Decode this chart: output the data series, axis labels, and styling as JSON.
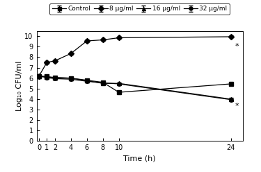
{
  "time": [
    0,
    1,
    2,
    4,
    6,
    8,
    10,
    24
  ],
  "control": [
    6.2,
    6.15,
    6.05,
    6.0,
    5.8,
    5.6,
    4.65,
    5.45
  ],
  "ug8": [
    6.2,
    7.5,
    7.65,
    8.35,
    9.55,
    9.65,
    9.85,
    9.95
  ],
  "ug16": [
    6.2,
    6.1,
    6.05,
    6.0,
    5.75,
    5.5,
    5.5,
    4.0
  ],
  "ug32": [
    6.2,
    6.05,
    5.95,
    5.9,
    5.7,
    5.55,
    5.45,
    3.95
  ],
  "control_err": [
    0.08,
    0.08,
    0.08,
    0.08,
    0.08,
    0.08,
    0.1,
    0.1
  ],
  "ug8_err": [
    0.08,
    0.1,
    0.12,
    0.1,
    0.1,
    0.1,
    0.08,
    0.1
  ],
  "ug16_err": [
    0.08,
    0.08,
    0.12,
    0.08,
    0.08,
    0.08,
    0.1,
    0.1
  ],
  "ug32_err": [
    0.08,
    0.08,
    0.08,
    0.08,
    0.08,
    0.08,
    0.08,
    0.1
  ],
  "star_high_y": 9.05,
  "star_low_y": 3.3,
  "xlabel": "Time (h)",
  "ylabel": "Log₁₀ CFU/ml",
  "legend": [
    "Control",
    "8 μg/ml",
    "16 μg/ml",
    "32 μg/ml"
  ],
  "ylim": [
    0,
    10.5
  ],
  "yticks": [
    0,
    1,
    2,
    3,
    4,
    5,
    6,
    7,
    8,
    9,
    10
  ],
  "xticks": [
    0,
    1,
    2,
    4,
    6,
    8,
    10,
    24
  ],
  "xlim_max": 25.5,
  "color": "#000000",
  "markers": [
    "s",
    "D",
    "^",
    "o"
  ],
  "markersize": [
    4,
    4,
    4,
    4
  ]
}
